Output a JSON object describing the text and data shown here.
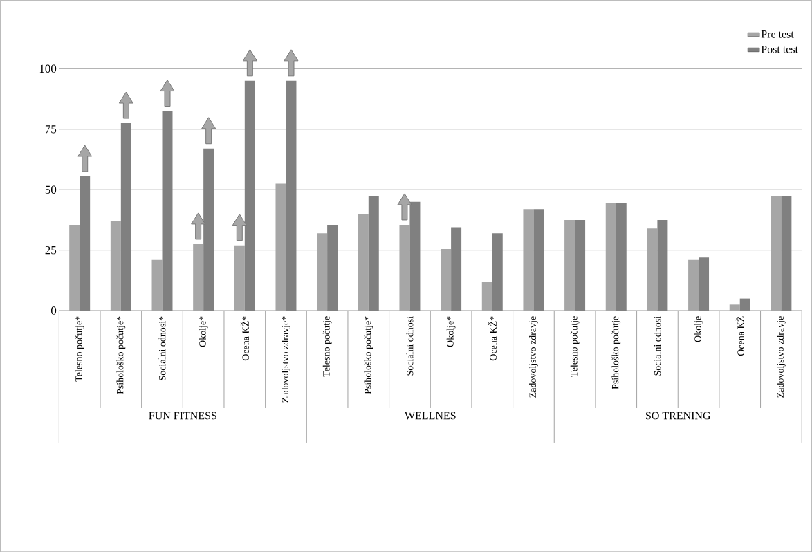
{
  "chart_data": {
    "type": "bar",
    "categories": [
      "Telesno počutje*",
      "Psihološko počutje*",
      "Socialni odnosi*",
      "Okolje*",
      "Ocena KŽ*",
      "Zadovoljstvo zdravje*",
      "Telesno počutje",
      "Psihološko počutje*",
      "Socialni odnosi",
      "Okolje*",
      "Ocena KŽ*",
      "Zadovoljstvo zdravje",
      "Telesno počutje",
      "Psihološko počutje",
      "Socialni odnosi",
      "Okolje",
      "Ocena KŽ",
      "Zadovoljstvo zdravje"
    ],
    "series": [
      {
        "name": "Pre test",
        "color": "#a6a6a6",
        "values": [
          35.5,
          37,
          21,
          27.5,
          27,
          52.5,
          32,
          40,
          35.5,
          25.5,
          12,
          42,
          37.5,
          44.5,
          34,
          21,
          2.5,
          47.5
        ]
      },
      {
        "name": "Post test",
        "color": "#808080",
        "values": [
          55.5,
          77.5,
          82.5,
          67,
          95,
          95,
          35.5,
          47.5,
          45,
          34.5,
          32,
          42,
          37.5,
          44.5,
          37.5,
          22,
          5,
          47.5
        ]
      }
    ],
    "ylim": [
      0,
      100
    ],
    "yticks": [
      0,
      25,
      50,
      75,
      100
    ],
    "grid": "y",
    "legend": "top right",
    "annotations": [
      "FUN FITNESS",
      "WELLNES",
      "SO TRENING"
    ]
  }
}
